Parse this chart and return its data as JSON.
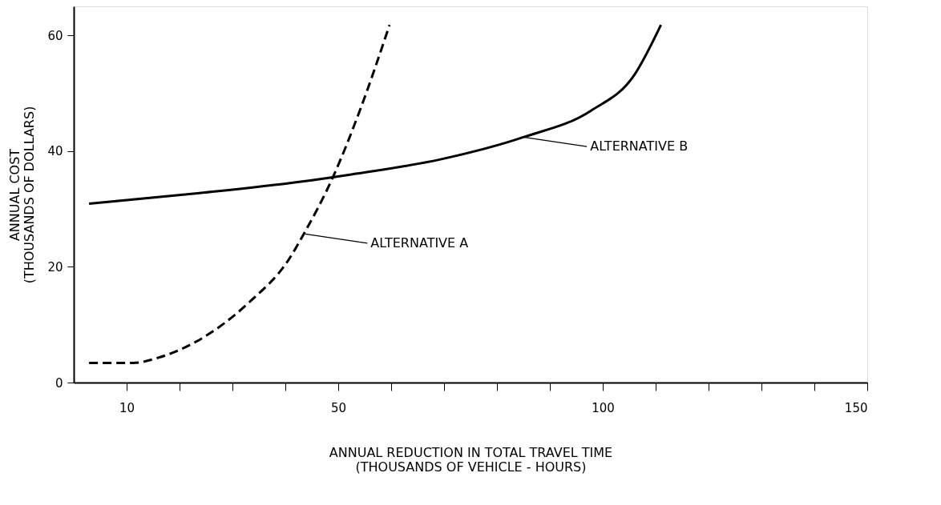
{
  "chart_data": {
    "type": "line",
    "xlabel": "ANNUAL   REDUCTION   IN   TOTAL   TRAVEL   TIME\n(THOUSANDS  OF  VEHICLE - HOURS)",
    "ylabel": "ANNUAL  COST\n(THOUSANDS OF DOLLARS)",
    "series": [
      {
        "color": "#000000",
        "line_style": "dashed",
        "x": [
          2.9,
          11.3,
          16,
          23.4,
          33.2,
          40.6,
          43.5,
          49,
          54.2,
          59.7
        ],
        "values": [
          3.4,
          3.4,
          4.3,
          7.2,
          13.9,
          21.2,
          25.7,
          35.5,
          47.3,
          61.8
        ]
      },
      {
        "color": "#000000",
        "line_style": "solid",
        "x": [
          2.9,
          23.4,
          42.9,
          52.7,
          69.5,
          85,
          97.8,
          106,
          111
        ],
        "values": [
          30.9,
          32.7,
          34.7,
          36,
          38.6,
          42.4,
          47,
          53.2,
          61.8
        ]
      }
    ],
    "annotations": [
      {
        "text": "ALTERNATIVE  A",
        "x": 43.5,
        "y": 25.7
      },
      {
        "text": "ALTERNATIVE  B",
        "x": 85,
        "y": 42.4
      }
    ],
    "xlim": [
      0,
      150
    ],
    "xticks": [
      10,
      {
        "value": 20,
        "label": null
      },
      {
        "value": 30,
        "label": null
      },
      {
        "value": 40,
        "label": null
      },
      50,
      {
        "value": 60,
        "label": null
      },
      {
        "value": 70,
        "label": null
      },
      {
        "value": 80,
        "label": null
      },
      {
        "value": 90,
        "label": null
      },
      100,
      {
        "value": 110,
        "label": null
      },
      {
        "value": 120,
        "label": null
      },
      {
        "value": 130,
        "label": null
      },
      {
        "value": 140,
        "label": null
      },
      150
    ],
    "ylim": [
      0,
      65
    ],
    "yticks": [
      0,
      20,
      40,
      60
    ],
    "grid": false,
    "marker": "none"
  }
}
